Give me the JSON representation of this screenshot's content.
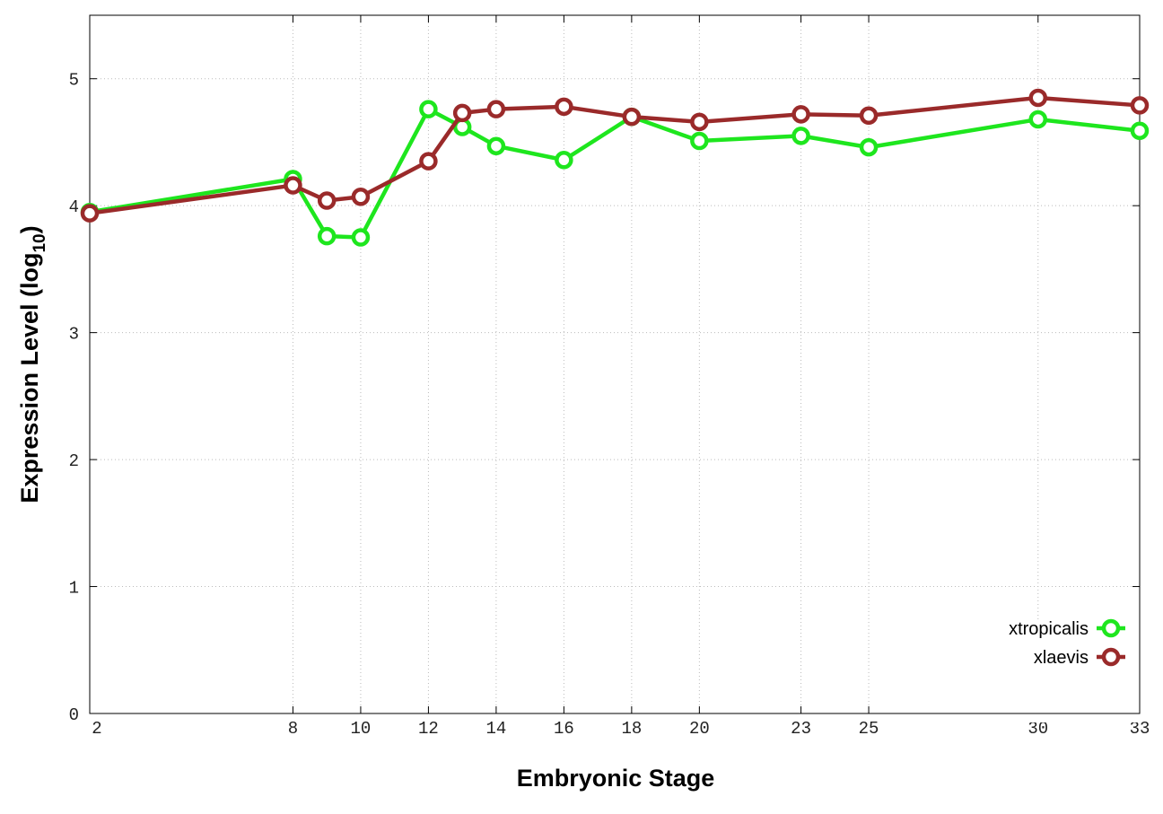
{
  "chart_data": {
    "type": "line",
    "xlabel": "Embryonic Stage",
    "ylabel": {
      "text": "Expression Level (log",
      "subscript": "10",
      "suffix": ")"
    },
    "x": [
      2,
      8,
      9,
      10,
      12,
      13,
      14,
      16,
      18,
      20,
      23,
      25,
      30,
      33
    ],
    "series": [
      {
        "name": "xtropicalis",
        "color": "#1ee61e",
        "values": [
          3.95,
          4.21,
          3.76,
          3.75,
          4.76,
          4.62,
          4.47,
          4.36,
          4.7,
          4.51,
          4.55,
          4.46,
          4.68,
          4.59
        ]
      },
      {
        "name": "xlaevis",
        "color": "#9a2a2a",
        "values": [
          3.94,
          4.16,
          4.04,
          4.07,
          4.35,
          4.73,
          4.76,
          4.78,
          4.7,
          4.66,
          4.72,
          4.71,
          4.85,
          4.79
        ]
      }
    ],
    "xlim": [
      2,
      33
    ],
    "xticks": [
      2,
      8,
      10,
      12,
      14,
      16,
      18,
      20,
      23,
      25,
      30,
      33
    ],
    "ylim": [
      0,
      5.5
    ],
    "yticks": [
      0,
      1,
      2,
      3,
      4,
      5
    ],
    "grid": true,
    "legend": "lower right"
  }
}
